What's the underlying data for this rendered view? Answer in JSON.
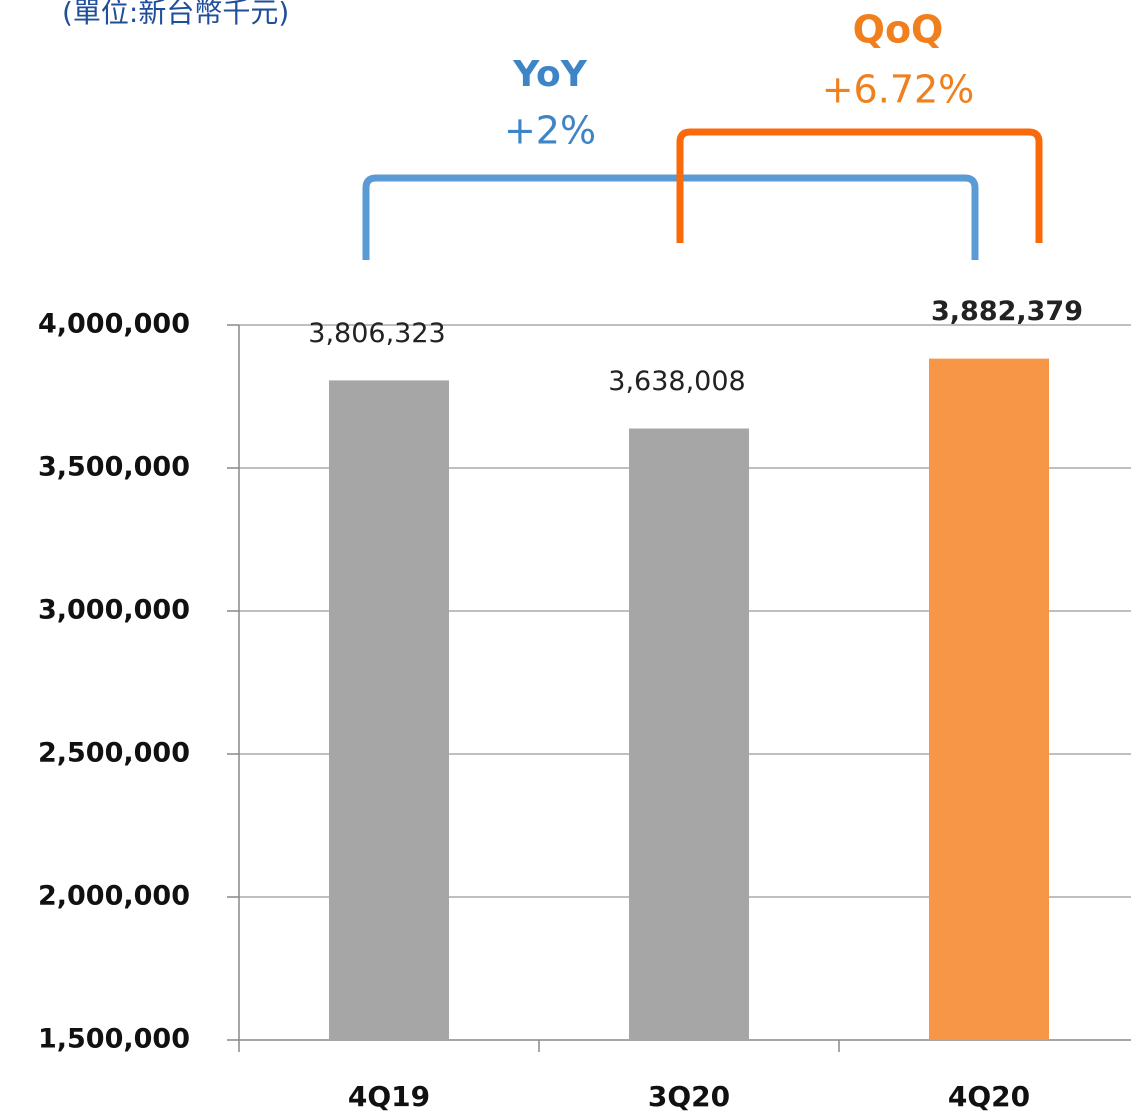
{
  "chart_data": {
    "type": "bar",
    "title": "(單位:新台幣千元)",
    "annotations": [
      {
        "label": "YoY",
        "text": "+2%",
        "color": "#3d85c6",
        "bracket_color": "#5b9bd5"
      },
      {
        "label": "QoQ",
        "text": "+6.72%",
        "color": "#f07f1e",
        "bracket_color": "#fa6a0a"
      }
    ],
    "categories": [
      "4Q19",
      "3Q20",
      "4Q20"
    ],
    "values": [
      3806323,
      3638008,
      3882379
    ],
    "value_labels": [
      "3,806,323",
      "3,638,008",
      "3,882,379"
    ],
    "colors": [
      "#a6a6a6",
      "#a6a6a6",
      "#f79646"
    ],
    "label_bold": [
      false,
      false,
      true
    ],
    "ylim": [
      1500000,
      4000000
    ],
    "yticks": [
      {
        "value": 1500000,
        "label": "1,500,000"
      },
      {
        "value": 2000000,
        "label": "2,000,000"
      },
      {
        "value": 2500000,
        "label": "2,500,000"
      },
      {
        "value": 3000000,
        "label": "3,000,000"
      },
      {
        "value": 3500000,
        "label": "3,500,000"
      },
      {
        "value": 4000000,
        "label": "4,000,000"
      }
    ],
    "grid": true
  }
}
